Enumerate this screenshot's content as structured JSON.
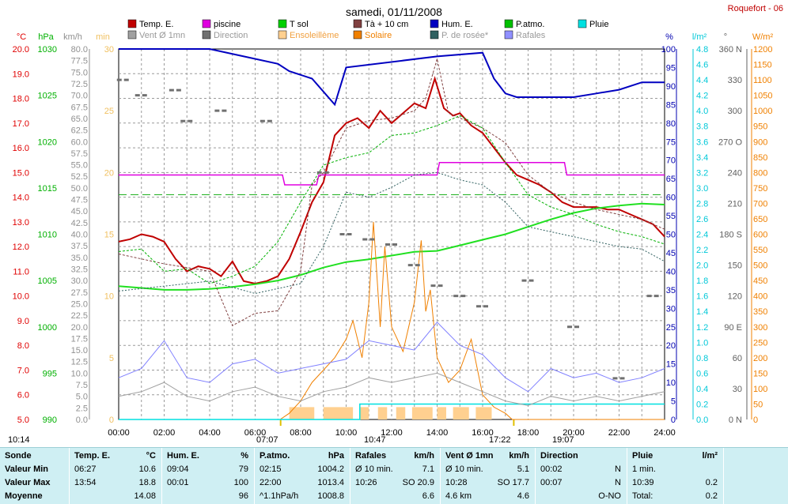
{
  "title": "samedi, 01/11/2008",
  "station": "Roquefort - 06",
  "legend": [
    {
      "label": "Temp. E.",
      "color": "#c00000"
    },
    {
      "label": "piscine",
      "color": "#e000e0"
    },
    {
      "label": "T sol",
      "color": "#00d000"
    },
    {
      "label": "Tà + 10 cm",
      "color": "#804040"
    },
    {
      "label": "Hum. E.",
      "color": "#0000c0"
    },
    {
      "label": "P.atmo.",
      "color": "#00c000"
    },
    {
      "label": "Pluie",
      "color": "#00e0e0"
    },
    {
      "label": "Vent Ø 1mn",
      "color": "#a0a0a0"
    },
    {
      "label": "Direction",
      "color": "#707070"
    },
    {
      "label": "Ensoleillème",
      "color": "#ffd090"
    },
    {
      "label": "Solaire",
      "color": "#f08000"
    },
    {
      "label": "P. de rosée*",
      "color": "#306060"
    },
    {
      "label": "Rafales",
      "color": "#9090ff"
    }
  ],
  "units": {
    "temp": "°C",
    "press": "hPa",
    "wind": "km/h",
    "sun": "min",
    "hum": "%",
    "rain": "l/m²",
    "dir": "°",
    "solar": "W/m²"
  },
  "chart_data": {
    "type": "line",
    "x_label_ticks": [
      "00:00",
      "02:00",
      "04:00",
      "06:00",
      "08:00",
      "10:00",
      "12:00",
      "14:00",
      "16:00",
      "18:00",
      "20:00",
      "22:00",
      "24:00"
    ],
    "axes": {
      "temp": {
        "ylim": [
          5.0,
          20.0
        ],
        "ticks": [
          "5.0",
          "6.0",
          "7.0",
          "8.0",
          "9.0",
          "10.0",
          "11.0",
          "12.0",
          "13.0",
          "14.0",
          "15.0",
          "16.0",
          "17.0",
          "18.0",
          "19.0",
          "20.0"
        ]
      },
      "press": {
        "ylim": [
          990,
          1030
        ],
        "ticks": [
          "990",
          "995",
          "1000",
          "1005",
          "1010",
          "1015",
          "1020",
          "1025",
          "1030"
        ]
      },
      "wind": {
        "ylim": [
          0,
          80
        ],
        "ticks": [
          "0.0",
          "2.5",
          "5.0",
          "7.5",
          "10.0",
          "12.5",
          "15.0",
          "17.5",
          "20.0",
          "22.5",
          "25.0",
          "27.5",
          "30.0",
          "32.5",
          "35.0",
          "37.5",
          "40.0",
          "42.5",
          "45.0",
          "47.5",
          "50.0",
          "52.5",
          "55.0",
          "57.5",
          "60.0",
          "62.5",
          "65.0",
          "67.5",
          "70.0",
          "72.5",
          "75.0",
          "77.5",
          "80.0"
        ]
      },
      "sun": {
        "ylim": [
          0,
          30
        ],
        "ticks": [
          "0",
          "5",
          "10",
          "15",
          "20",
          "25",
          "30"
        ]
      },
      "hum": {
        "ylim": [
          0,
          100
        ],
        "ticks": [
          "0",
          "5",
          "10",
          "15",
          "20",
          "25",
          "30",
          "35",
          "40",
          "45",
          "50",
          "55",
          "60",
          "65",
          "70",
          "75",
          "80",
          "85",
          "90",
          "95",
          "100"
        ]
      },
      "rain": {
        "ylim": [
          0,
          4.8
        ],
        "ticks": [
          "0.0",
          "0.2",
          "0.4",
          "0.6",
          "0.8",
          "1.0",
          "1.2",
          "1.4",
          "1.6",
          "1.8",
          "2.0",
          "2.2",
          "2.4",
          "2.6",
          "2.8",
          "3.0",
          "3.2",
          "3.4",
          "3.6",
          "3.8",
          "4.0",
          "4.2",
          "4.4",
          "4.6",
          "4.8"
        ]
      },
      "dir": {
        "ylim": [
          0,
          360
        ],
        "ticks": [
          "0 N",
          "30",
          "60",
          "90 E",
          "120",
          "150",
          "180 S",
          "210",
          "240",
          "270 O",
          "300",
          "330",
          "360 N"
        ]
      },
      "solar": {
        "ylim": [
          0,
          1200
        ],
        "ticks": [
          "0",
          "50",
          "100",
          "150",
          "200",
          "250",
          "300",
          "350",
          "400",
          "450",
          "500",
          "550",
          "600",
          "650",
          "700",
          "750",
          "800",
          "850",
          "900",
          "950",
          "1000",
          "1050",
          "1100",
          "1150",
          "1200"
        ]
      }
    },
    "series": [
      {
        "name": "Temp. E.",
        "x_hours": [
          0,
          0.5,
          1,
          1.5,
          2,
          2.5,
          3,
          3.5,
          4,
          4.5,
          5,
          5.5,
          6,
          6.5,
          7,
          7.5,
          8,
          8.5,
          9,
          9.5,
          10,
          10.5,
          11,
          11.5,
          12,
          12.5,
          13,
          13.5,
          13.9,
          14.3,
          14.7,
          15,
          15.5,
          16,
          16.5,
          17,
          17.5,
          18,
          18.5,
          19,
          19.5,
          20,
          20.5,
          21,
          21.5,
          22,
          22.5,
          23,
          23.5,
          24
        ],
        "values": [
          12.2,
          12.3,
          12.5,
          12.4,
          12.2,
          11.5,
          11.0,
          11.2,
          11.1,
          10.8,
          11.4,
          10.6,
          10.5,
          10.6,
          10.8,
          11.5,
          12.6,
          13.8,
          14.6,
          16.5,
          17.0,
          17.2,
          16.8,
          17.5,
          17.0,
          17.4,
          17.8,
          17.6,
          18.8,
          17.6,
          17.3,
          17.4,
          16.9,
          16.6,
          16.0,
          15.4,
          14.9,
          14.7,
          14.5,
          14.2,
          13.8,
          13.6,
          13.6,
          13.6,
          13.5,
          13.5,
          13.3,
          13.1,
          12.9,
          12.4
        ]
      },
      {
        "name": "piscine",
        "x_hours": [
          0,
          7.2,
          7.3,
          8.7,
          8.8,
          14,
          14.1,
          14.3,
          14.4,
          19.6,
          19.7,
          24
        ],
        "values": [
          14.9,
          14.9,
          14.5,
          14.5,
          14.9,
          14.9,
          15.4,
          15.4,
          15.4,
          15.4,
          14.9,
          14.9
        ]
      },
      {
        "name": "P.atmo.",
        "x_hours": [
          0,
          1,
          2,
          3,
          4,
          5,
          6,
          7,
          8,
          9,
          10,
          11,
          12,
          13,
          14,
          15,
          16,
          17,
          18,
          19,
          20,
          21,
          22,
          23,
          24
        ],
        "values": [
          1004.4,
          1004.2,
          1004.0,
          1004.0,
          1004.1,
          1004.3,
          1004.6,
          1005.0,
          1005.6,
          1006.4,
          1007.0,
          1007.3,
          1007.7,
          1008.1,
          1008.2,
          1008.8,
          1009.4,
          1010.0,
          1010.8,
          1011.6,
          1012.3,
          1012.8,
          1013.1,
          1013.3,
          1013.2
        ]
      },
      {
        "name": "Hum. E.",
        "x_hours": [
          0,
          2,
          4,
          5.5,
          7,
          7.5,
          8.5,
          9.5,
          10,
          14,
          16,
          16.5,
          17,
          17.5,
          18,
          19,
          20,
          21,
          22,
          23,
          24
        ],
        "values": [
          100,
          100,
          100,
          98,
          96,
          94,
          92,
          85,
          95,
          98,
          99,
          92,
          88,
          87,
          87,
          87,
          87,
          88,
          89,
          91,
          91
        ]
      },
      {
        "name": "P. de rosée*",
        "x_hours": [
          0,
          2,
          4,
          6,
          7,
          8,
          9,
          10,
          11,
          12,
          13,
          14,
          15,
          16,
          17,
          18,
          19,
          20,
          21,
          22,
          23,
          24
        ],
        "values": [
          10.2,
          10.4,
          10.6,
          10.1,
          10.3,
          10.5,
          12.0,
          14.2,
          14.0,
          14.4,
          14.9,
          15.0,
          14.7,
          14.5,
          13.8,
          12.8,
          12.6,
          12.4,
          12.2,
          12.0,
          11.9,
          11.4
        ]
      },
      {
        "name": "Tà + 10 cm",
        "x_hours": [
          0,
          2,
          4,
          5,
          6,
          7,
          8,
          8.5,
          9,
          10,
          11,
          12,
          13,
          13.5,
          14,
          14.5,
          15,
          16,
          17,
          18,
          19,
          20,
          21,
          22,
          23,
          24
        ],
        "values": [
          11.7,
          11.3,
          11.0,
          8.8,
          9.3,
          9.4,
          11.0,
          14.5,
          15.0,
          16.8,
          17.1,
          17.2,
          17.5,
          18.0,
          19.6,
          17.4,
          17.2,
          16.8,
          16.2,
          14.9,
          14.2,
          13.8,
          13.5,
          13.3,
          13.1,
          12.7
        ]
      },
      {
        "name": "T sol",
        "x_hours": [
          0,
          1,
          2,
          3,
          4,
          5,
          6,
          7,
          8,
          9,
          10,
          11,
          12,
          13,
          14,
          15,
          16,
          17,
          18,
          19,
          20,
          21,
          22,
          23,
          24
        ],
        "values": [
          11.8,
          11.9,
          11.0,
          11.1,
          10.5,
          10.8,
          11.2,
          12.2,
          13.8,
          15.3,
          15.6,
          15.8,
          16.5,
          16.6,
          16.9,
          17.3,
          16.8,
          15.4,
          14.1,
          13.6,
          13.3,
          12.9,
          12.6,
          12.4,
          12.1
        ]
      },
      {
        "name": "Solaire",
        "x_hours": [
          0,
          7.1,
          7.5,
          8,
          8.5,
          9,
          9.5,
          10,
          10.3,
          10.7,
          11,
          11.2,
          11.5,
          11.7,
          12,
          12.5,
          13,
          13.3,
          13.5,
          13.7,
          14,
          14.5,
          15,
          15.5,
          16,
          16.5,
          17,
          17.3,
          18,
          24
        ],
        "values": [
          0,
          0,
          20,
          60,
          120,
          160,
          200,
          260,
          320,
          200,
          380,
          640,
          300,
          560,
          300,
          220,
          380,
          580,
          350,
          420,
          200,
          120,
          160,
          260,
          80,
          40,
          20,
          0,
          0,
          0
        ]
      },
      {
        "name": "Pluie",
        "x_hours": [
          0,
          10.6,
          10.6,
          24
        ],
        "values": [
          0,
          0,
          0.2,
          0.2
        ]
      },
      {
        "name": "Vent Ø 1mn",
        "x_hours": [
          0,
          1,
          2,
          3,
          4,
          5,
          6,
          7,
          8,
          9,
          10,
          11,
          12,
          13,
          14,
          15,
          16,
          17,
          18,
          19,
          20,
          21,
          22,
          23,
          24
        ],
        "values": [
          5,
          6,
          8,
          5,
          4,
          6,
          7,
          5,
          4,
          6,
          7,
          9,
          8,
          9,
          10,
          8,
          6,
          4,
          3,
          5,
          4,
          5,
          4,
          5,
          6
        ]
      },
      {
        "name": "Rafales",
        "x_hours": [
          0,
          1,
          2,
          3,
          4,
          5,
          6,
          7,
          8,
          9,
          10,
          11,
          12,
          13,
          14,
          15,
          16,
          17,
          18,
          19,
          20,
          21,
          22,
          23,
          24
        ],
        "values": [
          9,
          11,
          17,
          9,
          8,
          12,
          13,
          10,
          11,
          12,
          13,
          17,
          16,
          15,
          21,
          16,
          14,
          9,
          6,
          11,
          9,
          10,
          8,
          9,
          11
        ]
      },
      {
        "name": "Direction",
        "x_hours": [
          0.2,
          1,
          2.5,
          3,
          4.5,
          6.5,
          9,
          10,
          11,
          12,
          13,
          14,
          15,
          16,
          18,
          20,
          22,
          23.5
        ],
        "values": [
          330,
          315,
          320,
          290,
          300,
          290,
          240,
          180,
          175,
          170,
          150,
          130,
          120,
          110,
          135,
          90,
          40,
          120
        ]
      }
    ],
    "sun_intervals": [
      [
        7.5,
        8.6
      ],
      [
        9,
        10.3
      ],
      [
        10.6,
        11
      ],
      [
        11.4,
        11.8
      ],
      [
        12.2,
        12.6
      ],
      [
        12.9,
        13.8
      ],
      [
        14,
        14.4
      ],
      [
        14.7,
        15.4
      ],
      [
        15.7,
        16.4
      ]
    ],
    "markers": {
      "sunrise": "07:07",
      "sunset": "17:22",
      "noon_left": "10:47",
      "noon_right": "19:07",
      "start": "10:14"
    }
  },
  "stats": {
    "headers": [
      {
        "name": "Sonde",
        "unit": ""
      },
      {
        "name": "Temp. E.",
        "unit": "°C"
      },
      {
        "name": "Hum. E.",
        "unit": "%"
      },
      {
        "name": "P.atmo.",
        "unit": "hPa"
      },
      {
        "name": "Rafales",
        "unit": "km/h"
      },
      {
        "name": "Vent Ø 1mn",
        "unit": "km/h"
      },
      {
        "name": "Direction",
        "unit": ""
      },
      {
        "name": "Pluie",
        "unit": "l/m²"
      }
    ],
    "rows": [
      {
        "label": "Valeur Min",
        "temp": [
          "06:27",
          "10.6"
        ],
        "hum": [
          "09:04",
          "79"
        ],
        "press": [
          "02:15",
          "1004.2"
        ],
        "gust": [
          "Ø 10 min.",
          "7.1"
        ],
        "wind": [
          "Ø 10 min.",
          "5.1"
        ],
        "dir": [
          "00:02",
          "N"
        ],
        "rain": [
          "1 min.",
          ""
        ]
      },
      {
        "label": "Valeur Max",
        "temp": [
          "13:54",
          "18.8"
        ],
        "hum": [
          "00:01",
          "100"
        ],
        "press": [
          "22:00",
          "1013.4"
        ],
        "gust": [
          "10:26",
          "SO 20.9"
        ],
        "wind": [
          "10:28",
          "SO 17.7"
        ],
        "dir": [
          "00:07",
          "N"
        ],
        "rain": [
          "10:39",
          "0.2"
        ]
      },
      {
        "label": "Moyenne",
        "temp": [
          "",
          "14.08"
        ],
        "hum": [
          "",
          "96"
        ],
        "press": [
          "^1.1hPa/h",
          "1008.8"
        ],
        "gust": [
          "",
          "6.6"
        ],
        "wind": [
          "4.6 km",
          "4.6"
        ],
        "dir": [
          "",
          "O-NO"
        ],
        "rain": [
          "Total:",
          "0.2"
        ]
      }
    ]
  }
}
